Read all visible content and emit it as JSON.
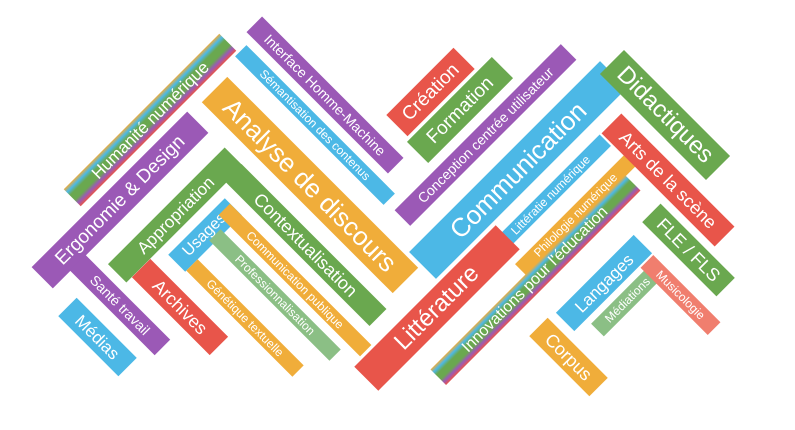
{
  "colors": {
    "green": "#6aa84f",
    "purple": "#9b59b6",
    "orange": "#f0ad3a",
    "blue": "#4cb8e6",
    "red": "#e8554a",
    "salmon": "#f07e6e",
    "mint": "#8bbf85"
  },
  "tags": [
    {
      "id": "humanite-numerique",
      "label": "Humanité numérique",
      "color": "green",
      "gradient": true
    },
    {
      "id": "ergonomie-design",
      "label": "Ergonomie & Design",
      "color": "purple"
    },
    {
      "id": "appropriation",
      "label": "Appropriation",
      "color": "green"
    },
    {
      "id": "usages",
      "label": "Usages",
      "color": "blue"
    },
    {
      "id": "archives",
      "label": "Archives",
      "color": "red"
    },
    {
      "id": "sante-travail",
      "label": "Santé travail",
      "color": "purple"
    },
    {
      "id": "medias",
      "label": "Médias",
      "color": "blue"
    },
    {
      "id": "interface-homme-machine",
      "label": "Interface Homme-Machine",
      "color": "purple"
    },
    {
      "id": "semantisation-contenus",
      "label": "Sémantisation des contenus",
      "color": "blue"
    },
    {
      "id": "analyse-de-discours",
      "label": "Analyse de discours",
      "color": "orange"
    },
    {
      "id": "contextualisation",
      "label": "Contextualisation",
      "color": "green"
    },
    {
      "id": "communication-publique",
      "label": "Communication publique",
      "color": "orange"
    },
    {
      "id": "professionnalisation",
      "label": "Professionnalisation",
      "color": "mint"
    },
    {
      "id": "genetique-textuelle",
      "label": "Génétique textuelle",
      "color": "orange"
    },
    {
      "id": "creation",
      "label": "Création",
      "color": "red"
    },
    {
      "id": "formation",
      "label": "Formation",
      "color": "green"
    },
    {
      "id": "conception-centree-utilisateur",
      "label": "Conception centrée utilisateur",
      "color": "purple"
    },
    {
      "id": "communication",
      "label": "Communication",
      "color": "blue"
    },
    {
      "id": "litteratie-numerique",
      "label": "Littératie numérique",
      "color": "blue"
    },
    {
      "id": "philologie-numerique",
      "label": "Philologie numérique",
      "color": "orange"
    },
    {
      "id": "litterature",
      "label": "Littérature",
      "color": "red"
    },
    {
      "id": "innovations-education",
      "label": "Innovations pour l'éducation",
      "color": "green",
      "gradient": true
    },
    {
      "id": "didactiques",
      "label": "Didactiques",
      "color": "green"
    },
    {
      "id": "arts-de-la-scene",
      "label": "Arts de la scène",
      "color": "red"
    },
    {
      "id": "fle-fls",
      "label": "FLE / FLS",
      "color": "green"
    },
    {
      "id": "langages",
      "label": "Langages",
      "color": "blue"
    },
    {
      "id": "mediations",
      "label": "Médiations",
      "color": "mint"
    },
    {
      "id": "musicologie",
      "label": "Musicologie",
      "color": "salmon"
    },
    {
      "id": "corpus",
      "label": "Corpus",
      "color": "orange"
    }
  ]
}
